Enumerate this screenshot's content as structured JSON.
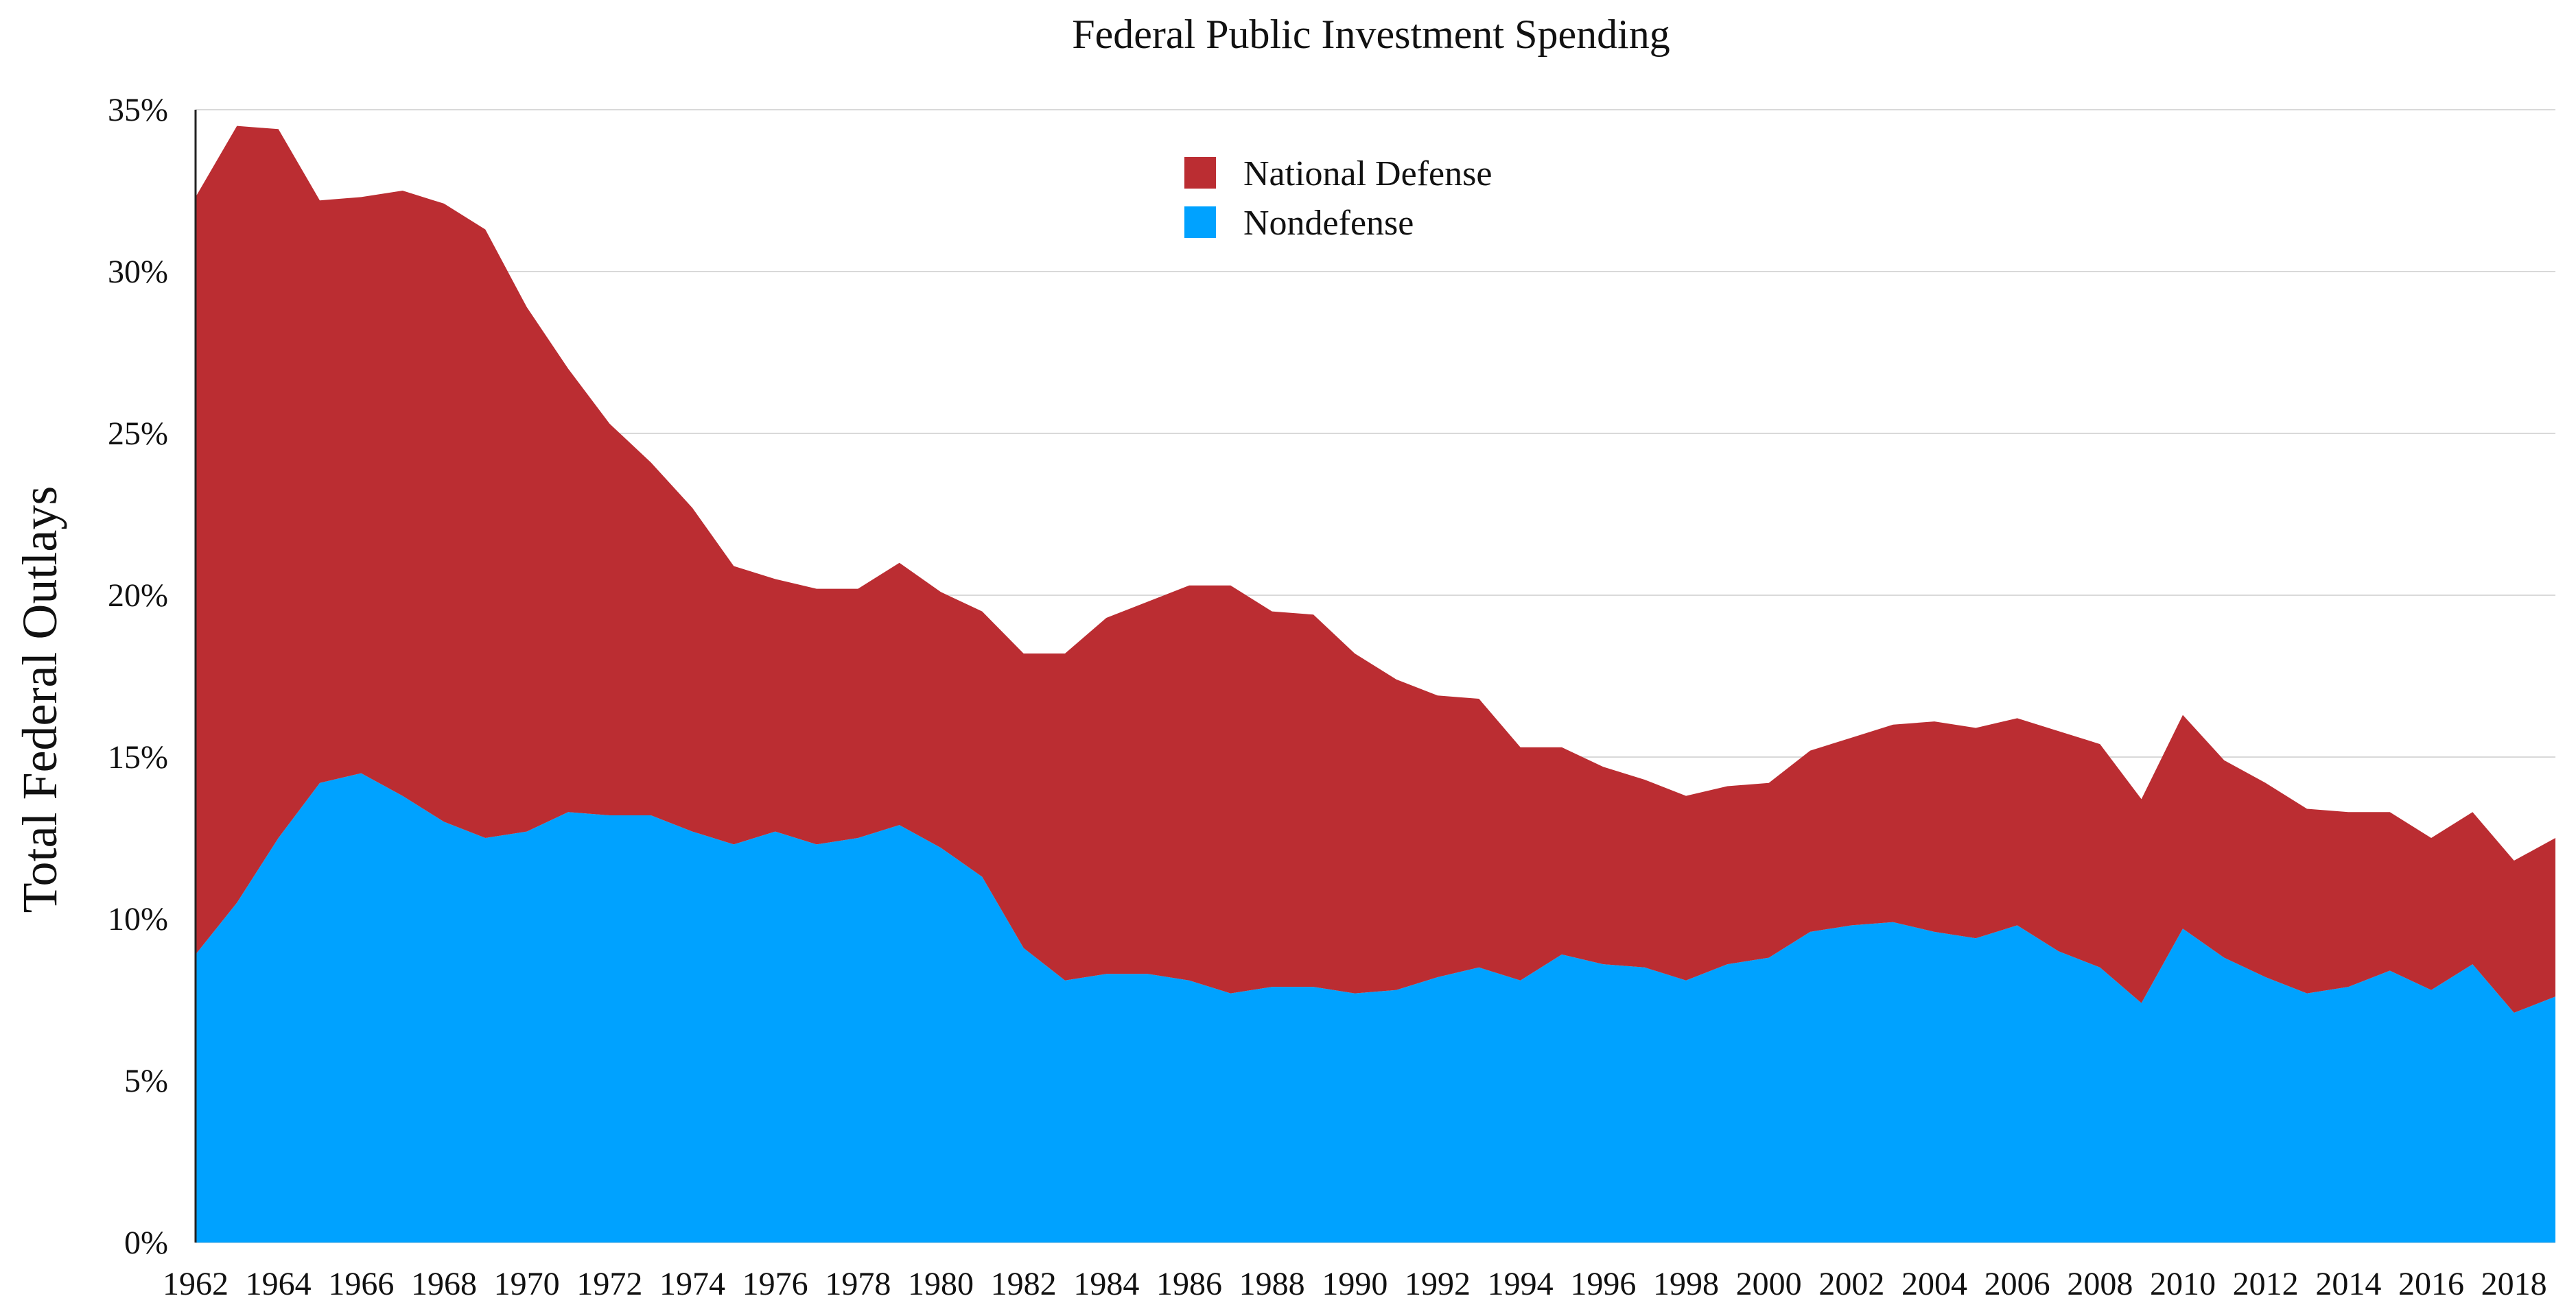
{
  "chart_data": {
    "type": "area",
    "stacked": true,
    "title": "Federal Public Investment Spending",
    "xlabel": "",
    "ylabel": "Total Federal Outlays",
    "ylim": [
      0,
      35
    ],
    "yticks": [
      "0%",
      "5%",
      "10%",
      "15%",
      "20%",
      "25%",
      "30%",
      "35%"
    ],
    "xtick_labels": [
      "1962",
      "1964",
      "1966",
      "1968",
      "1970",
      "1972",
      "1974",
      "1976",
      "1978",
      "1980",
      "1982",
      "1984",
      "1986",
      "1988",
      "1990",
      "1992",
      "1994",
      "1996",
      "1998",
      "2000",
      "2002",
      "2004",
      "2006",
      "2008",
      "2010",
      "2012",
      "2014",
      "2016",
      "2018"
    ],
    "x": [
      1962,
      1963,
      1964,
      1965,
      1966,
      1967,
      1968,
      1969,
      1970,
      1971,
      1972,
      1973,
      1974,
      1975,
      1976,
      1977,
      1978,
      1979,
      1980,
      1981,
      1982,
      1983,
      1984,
      1985,
      1986,
      1987,
      1988,
      1989,
      1990,
      1991,
      1992,
      1993,
      1994,
      1995,
      1996,
      1997,
      1998,
      1999,
      2000,
      2001,
      2002,
      2003,
      2004,
      2005,
      2006,
      2007,
      2008,
      2009,
      2010,
      2011,
      2012,
      2013,
      2014,
      2015,
      2016,
      2017,
      2018,
      2019
    ],
    "grid": true,
    "legend_position": "top-center",
    "series": [
      {
        "name": "Nondefense",
        "color": "#00a2ff",
        "values": [
          8.9,
          10.5,
          12.5,
          14.2,
          14.5,
          13.8,
          13.0,
          12.5,
          12.7,
          13.3,
          13.2,
          13.2,
          12.7,
          12.3,
          12.7,
          12.3,
          12.5,
          12.9,
          12.2,
          11.3,
          9.1,
          8.1,
          8.3,
          8.3,
          8.1,
          7.7,
          7.9,
          7.9,
          7.7,
          7.8,
          8.2,
          8.5,
          8.1,
          8.9,
          8.6,
          8.5,
          8.1,
          8.6,
          8.8,
          9.6,
          9.8,
          9.9,
          9.6,
          9.4,
          9.8,
          9.0,
          8.5,
          7.4,
          9.7,
          8.8,
          8.2,
          7.7,
          7.9,
          8.4,
          7.8,
          8.6,
          7.1,
          7.6
        ]
      },
      {
        "name": "National Defense",
        "color": "#bb2d32",
        "values": [
          23.4,
          24.0,
          21.9,
          18.0,
          17.8,
          18.7,
          19.1,
          18.8,
          16.2,
          13.7,
          12.1,
          10.9,
          10.0,
          8.6,
          7.8,
          7.9,
          7.7,
          8.1,
          7.9,
          8.2,
          9.1,
          10.1,
          11.0,
          11.5,
          12.2,
          12.6,
          11.6,
          11.5,
          10.5,
          9.6,
          8.7,
          8.3,
          7.2,
          6.4,
          6.1,
          5.8,
          5.7,
          5.5,
          5.4,
          5.6,
          5.8,
          6.1,
          6.5,
          6.5,
          6.4,
          6.8,
          6.9,
          6.3,
          6.6,
          6.1,
          6.0,
          5.7,
          5.4,
          4.9,
          4.7,
          4.7,
          4.7,
          4.9
        ]
      }
    ]
  }
}
